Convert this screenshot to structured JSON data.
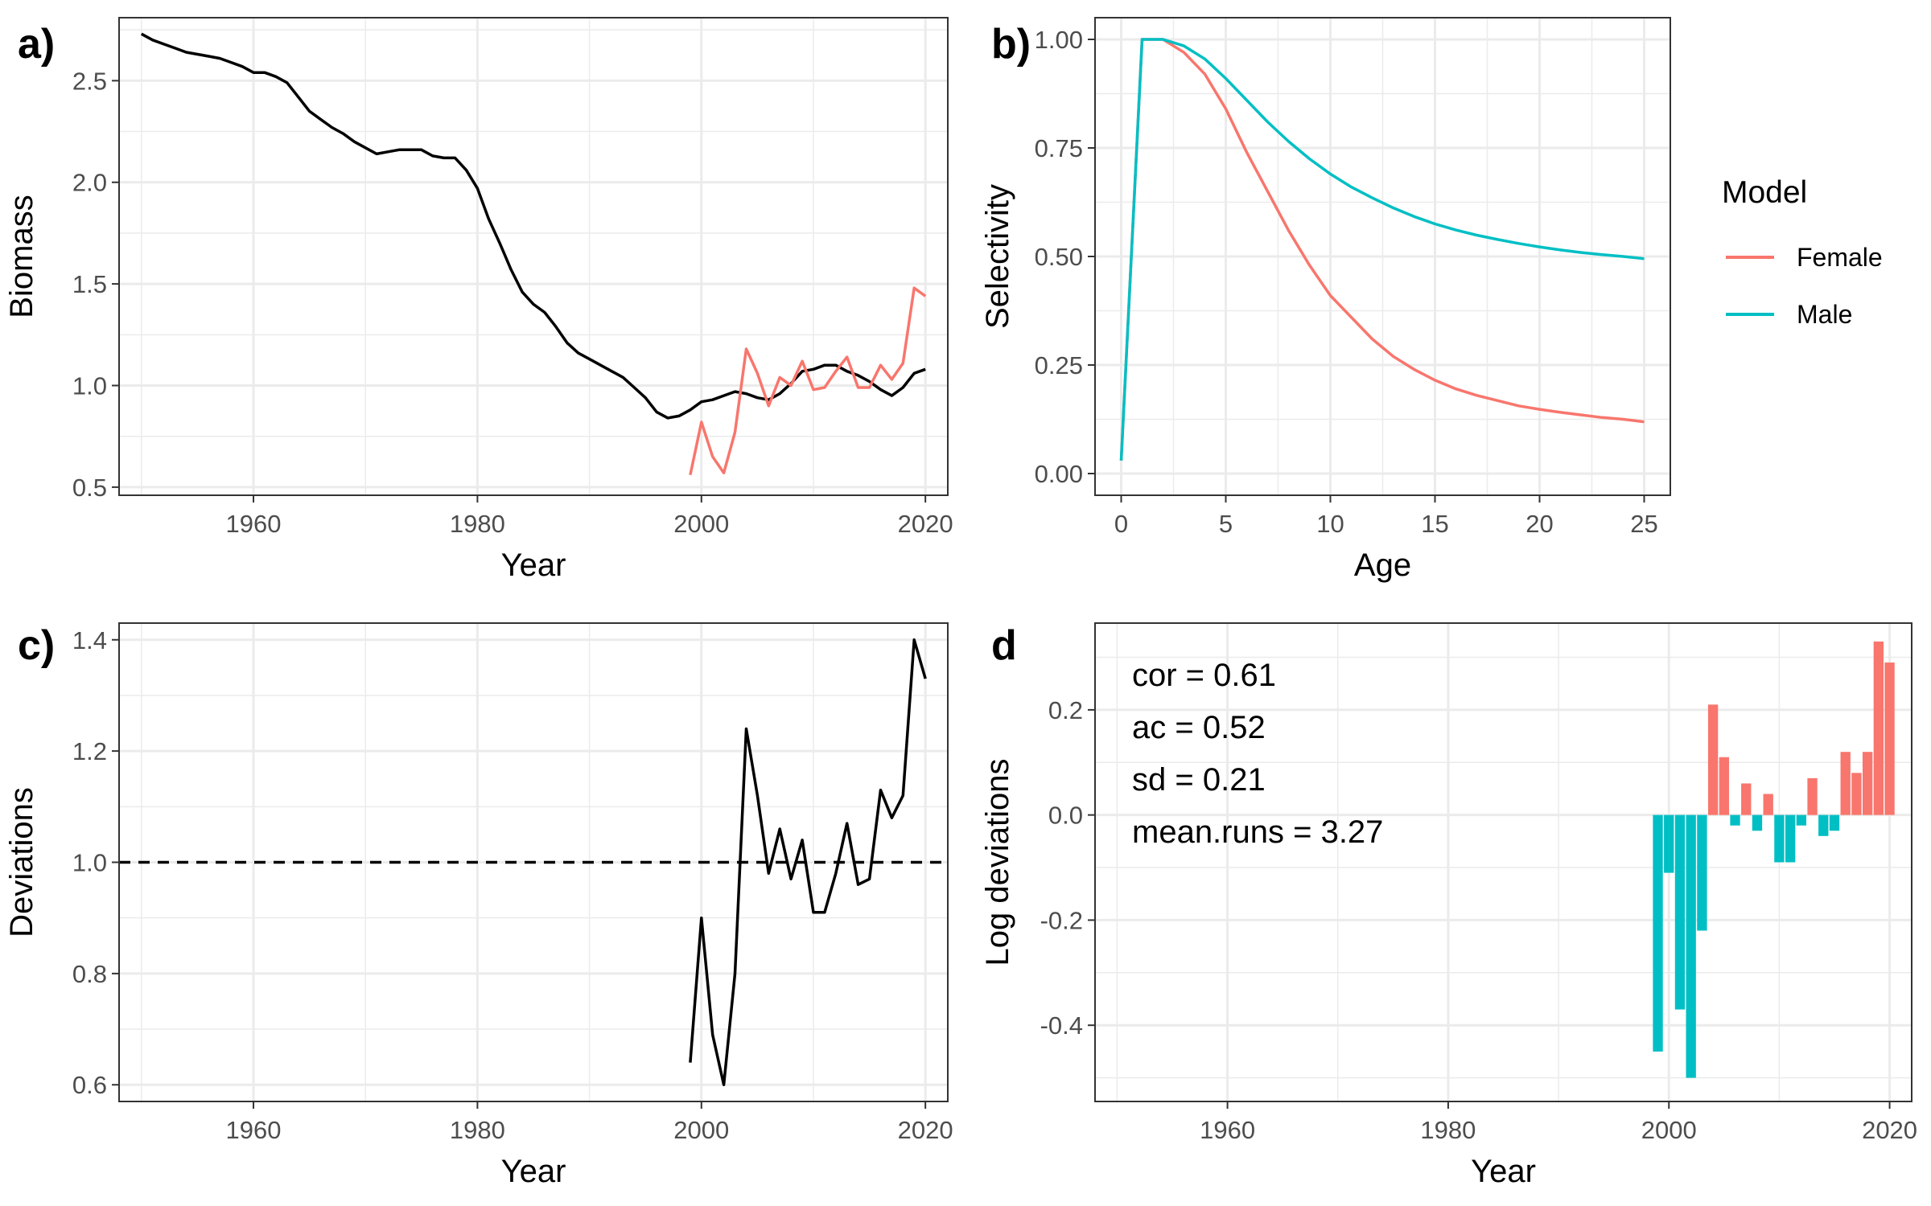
{
  "colors": {
    "female": "#F8766D",
    "male": "#00BFC4",
    "main_line": "#000000",
    "grid": "#ebebeb",
    "panel_border": "#333333",
    "tick_text": "#4d4d4d"
  },
  "legend": {
    "title": "Model",
    "entries": [
      "Female",
      "Male"
    ],
    "placement": "right of panel b"
  },
  "chart_data": [
    {
      "panel": "a)",
      "type": "line",
      "xlabel": "Year",
      "ylabel": "Biomass",
      "xlim": [
        1948,
        2022
      ],
      "ylim": [
        0.46,
        2.81
      ],
      "xticks": [
        1960,
        1980,
        2000,
        2020
      ],
      "xtick_labels": [
        "1960",
        "1980",
        "2000",
        "2020"
      ],
      "yticks": [
        0.5,
        1.0,
        1.5,
        2.0,
        2.5
      ],
      "ytick_labels": [
        "0.5",
        "1.0",
        "1.5",
        "2.0",
        "2.5"
      ],
      "grid": true,
      "series": [
        {
          "color": "#000000",
          "x": [
            1950,
            1951,
            1952,
            1953,
            1954,
            1955,
            1956,
            1957,
            1958,
            1959,
            1960,
            1961,
            1962,
            1963,
            1964,
            1965,
            1966,
            1967,
            1968,
            1969,
            1970,
            1971,
            1972,
            1973,
            1974,
            1975,
            1976,
            1977,
            1978,
            1979,
            1980,
            1981,
            1982,
            1983,
            1984,
            1985,
            1986,
            1987,
            1988,
            1989,
            1990,
            1991,
            1992,
            1993,
            1994,
            1995,
            1996,
            1997,
            1998,
            1999,
            2000,
            2001,
            2002,
            2003,
            2004,
            2005,
            2006,
            2007,
            2008,
            2009,
            2010,
            2011,
            2012,
            2013,
            2014,
            2015,
            2016,
            2017,
            2018,
            2019,
            2020
          ],
          "y": [
            2.73,
            2.7,
            2.68,
            2.66,
            2.64,
            2.63,
            2.62,
            2.61,
            2.59,
            2.57,
            2.54,
            2.54,
            2.52,
            2.49,
            2.42,
            2.35,
            2.31,
            2.27,
            2.24,
            2.2,
            2.17,
            2.14,
            2.15,
            2.16,
            2.16,
            2.16,
            2.13,
            2.12,
            2.12,
            2.06,
            1.97,
            1.82,
            1.7,
            1.57,
            1.46,
            1.4,
            1.36,
            1.29,
            1.21,
            1.16,
            1.13,
            1.1,
            1.07,
            1.04,
            0.99,
            0.94,
            0.87,
            0.84,
            0.85,
            0.88,
            0.92,
            0.93,
            0.95,
            0.97,
            0.96,
            0.94,
            0.93,
            0.96,
            1.01,
            1.07,
            1.08,
            1.1,
            1.1,
            1.07,
            1.05,
            1.02,
            0.98,
            0.95,
            0.99,
            1.06,
            1.08
          ]
        },
        {
          "color": "#F8766D",
          "x": [
            1999,
            2000,
            2001,
            2002,
            2003,
            2004,
            2005,
            2006,
            2007,
            2008,
            2009,
            2010,
            2011,
            2012,
            2013,
            2014,
            2015,
            2016,
            2017,
            2018,
            2019,
            2020
          ],
          "y": [
            0.56,
            0.82,
            0.65,
            0.57,
            0.77,
            1.18,
            1.06,
            0.9,
            1.04,
            1.0,
            1.12,
            0.98,
            0.99,
            1.07,
            1.14,
            0.99,
            0.99,
            1.1,
            1.03,
            1.11,
            1.48,
            1.44
          ]
        }
      ]
    },
    {
      "panel": "b)",
      "type": "line",
      "xlabel": "Age",
      "ylabel": "Selectivity",
      "xlim": [
        -1.25,
        26.25
      ],
      "ylim": [
        -0.05,
        1.05
      ],
      "xticks": [
        0,
        5,
        10,
        15,
        20,
        25
      ],
      "xtick_labels": [
        "0",
        "5",
        "10",
        "15",
        "20",
        "25"
      ],
      "yticks": [
        0.0,
        0.25,
        0.5,
        0.75,
        1.0
      ],
      "ytick_labels": [
        "0.00",
        "0.25",
        "0.50",
        "0.75",
        "1.00"
      ],
      "grid": true,
      "series": [
        {
          "name": "Female",
          "color": "#F8766D",
          "x": [
            0,
            1,
            2,
            3,
            4,
            5,
            6,
            7,
            8,
            9,
            10,
            11,
            12,
            13,
            14,
            15,
            16,
            17,
            18,
            19,
            20,
            21,
            22,
            23,
            24,
            25
          ],
          "y": [
            0.03,
            1.0,
            1.0,
            0.97,
            0.92,
            0.84,
            0.74,
            0.65,
            0.56,
            0.48,
            0.41,
            0.36,
            0.31,
            0.27,
            0.24,
            0.215,
            0.195,
            0.18,
            0.168,
            0.156,
            0.148,
            0.141,
            0.135,
            0.129,
            0.125,
            0.119
          ]
        },
        {
          "name": "Male",
          "color": "#00BFC4",
          "x": [
            0,
            1,
            2,
            3,
            4,
            5,
            6,
            7,
            8,
            9,
            10,
            11,
            12,
            13,
            14,
            15,
            16,
            17,
            18,
            19,
            20,
            21,
            22,
            23,
            24,
            25
          ],
          "y": [
            0.03,
            1.0,
            1.0,
            0.985,
            0.955,
            0.91,
            0.86,
            0.81,
            0.765,
            0.725,
            0.69,
            0.66,
            0.635,
            0.612,
            0.592,
            0.575,
            0.561,
            0.549,
            0.539,
            0.53,
            0.522,
            0.515,
            0.509,
            0.504,
            0.5,
            0.495
          ]
        }
      ]
    },
    {
      "panel": "c)",
      "type": "line",
      "xlabel": "Year",
      "ylabel": "Deviations",
      "xlim": [
        1948,
        2022
      ],
      "ylim": [
        0.57,
        1.43
      ],
      "xticks": [
        1960,
        1980,
        2000,
        2020
      ],
      "xtick_labels": [
        "1960",
        "1980",
        "2000",
        "2020"
      ],
      "yticks": [
        0.6,
        0.8,
        1.0,
        1.2,
        1.4
      ],
      "ytick_labels": [
        "0.6",
        "0.8",
        "1.0",
        "1.2",
        "1.4"
      ],
      "grid": true,
      "reference_line": {
        "y": 1.0,
        "style": "dashed"
      },
      "series": [
        {
          "color": "#000000",
          "x": [
            1999,
            2000,
            2001,
            2002,
            2003,
            2004,
            2005,
            2006,
            2007,
            2008,
            2009,
            2010,
            2011,
            2012,
            2013,
            2014,
            2015,
            2016,
            2017,
            2018,
            2019,
            2020
          ],
          "y": [
            0.64,
            0.9,
            0.69,
            0.6,
            0.8,
            1.24,
            1.12,
            0.98,
            1.06,
            0.97,
            1.04,
            0.91,
            0.91,
            0.98,
            1.07,
            0.96,
            0.97,
            1.13,
            1.08,
            1.12,
            1.4,
            1.33
          ]
        }
      ]
    },
    {
      "panel": "d",
      "type": "bar",
      "xlabel": "Year",
      "ylabel": "Log deviations",
      "xlim": [
        1948,
        2022
      ],
      "ylim": [
        -0.545,
        0.365
      ],
      "xticks": [
        1960,
        1980,
        2000,
        2020
      ],
      "xtick_labels": [
        "1960",
        "1980",
        "2000",
        "2020"
      ],
      "yticks": [
        -0.4,
        -0.2,
        0.0,
        0.2
      ],
      "ytick_labels": [
        "-0.4",
        "-0.2",
        "0.0",
        "0.2"
      ],
      "grid": true,
      "positive_color": "#F8766D",
      "negative_color": "#00BFC4",
      "x": [
        1999,
        2000,
        2001,
        2002,
        2003,
        2004,
        2005,
        2006,
        2007,
        2008,
        2009,
        2010,
        2011,
        2012,
        2013,
        2014,
        2015,
        2016,
        2017,
        2018,
        2019,
        2020
      ],
      "values": [
        -0.45,
        -0.11,
        -0.37,
        -0.5,
        -0.22,
        0.21,
        0.11,
        -0.02,
        0.06,
        -0.03,
        0.04,
        -0.09,
        -0.09,
        -0.02,
        0.07,
        -0.04,
        -0.03,
        0.12,
        0.08,
        0.12,
        0.33,
        0.29
      ],
      "annotations": [
        "cor = 0.61",
        "ac = 0.52",
        "sd = 0.21",
        "mean.runs = 3.27"
      ]
    }
  ]
}
